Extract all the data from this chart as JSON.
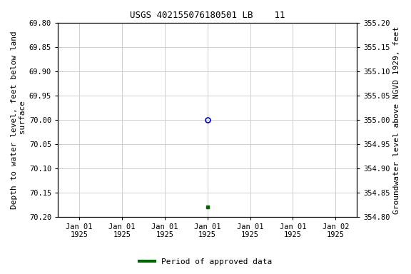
{
  "title": "USGS 402155076180501 LB    11",
  "ylabel_left": "Depth to water level, feet below land\n surface",
  "ylabel_right": "Groundwater level above NGVD 1929, feet",
  "ylim_left": [
    70.2,
    69.8
  ],
  "ylim_right": [
    354.8,
    355.2
  ],
  "yticks_left": [
    69.8,
    69.85,
    69.9,
    69.95,
    70.0,
    70.05,
    70.1,
    70.15,
    70.2
  ],
  "yticks_right": [
    355.2,
    355.15,
    355.1,
    355.05,
    355.0,
    354.95,
    354.9,
    354.85,
    354.8
  ],
  "xtick_labels": [
    "Jan 01\n1925",
    "Jan 01\n1925",
    "Jan 01\n1925",
    "Jan 01\n1925",
    "Jan 01\n1925",
    "Jan 01\n1925",
    "Jan 02\n1925"
  ],
  "data_point_open_value": 70.0,
  "data_point_filled_value": 70.18,
  "open_marker_color": "#0000cc",
  "filled_marker_color": "#006400",
  "background_color": "#ffffff",
  "grid_color": "#c8c8c8",
  "title_fontsize": 9,
  "tick_fontsize": 7.5,
  "legend_label": "Period of approved data",
  "legend_color": "#006400"
}
